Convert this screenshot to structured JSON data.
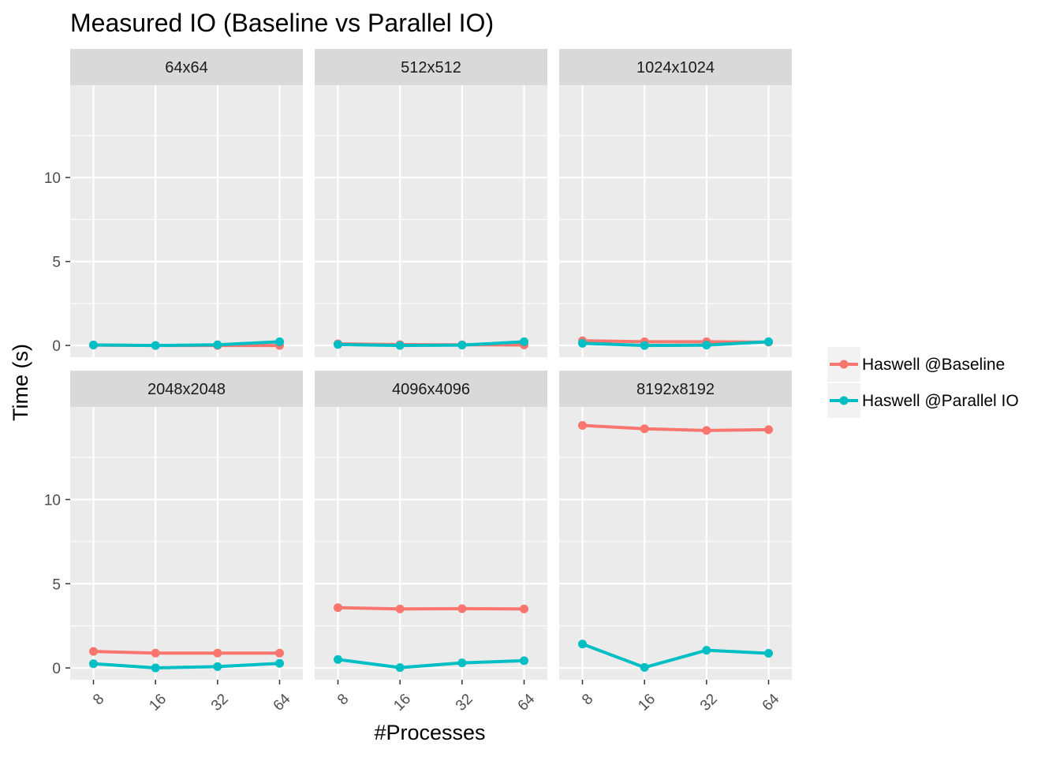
{
  "chart_data": {
    "type": "line",
    "title": "Measured IO (Baseline vs Parallel IO)",
    "xlabel": "#Processes",
    "ylabel": "Time (s)",
    "x": [
      "8",
      "16",
      "32",
      "64"
    ],
    "yticks": [
      "0",
      "5",
      "10"
    ],
    "ylim": [
      -0.7,
      15.5
    ],
    "grid": true,
    "legend_position": "right",
    "colors": {
      "Haswell @Baseline": "#F8766D",
      "Haswell @Parallel IO": "#00BFC4"
    },
    "legend": [
      "Haswell @Baseline",
      "Haswell @Parallel IO"
    ],
    "panels": [
      {
        "label": "64x64",
        "series": [
          {
            "name": "Haswell @Baseline",
            "values": [
              0.02,
              0.0,
              0.0,
              0.0
            ]
          },
          {
            "name": "Haswell @Parallel IO",
            "values": [
              0.03,
              0.0,
              0.04,
              0.22
            ]
          }
        ]
      },
      {
        "label": "512x512",
        "series": [
          {
            "name": "Haswell @Baseline",
            "values": [
              0.1,
              0.05,
              0.04,
              0.03
            ]
          },
          {
            "name": "Haswell @Parallel IO",
            "values": [
              0.06,
              0.0,
              0.02,
              0.22
            ]
          }
        ]
      },
      {
        "label": "1024x1024",
        "series": [
          {
            "name": "Haswell @Baseline",
            "values": [
              0.28,
              0.22,
              0.22,
              0.2
            ]
          },
          {
            "name": "Haswell @Parallel IO",
            "values": [
              0.13,
              0.0,
              0.02,
              0.22
            ]
          }
        ]
      },
      {
        "label": "2048x2048",
        "series": [
          {
            "name": "Haswell @Baseline",
            "values": [
              0.98,
              0.88,
              0.88,
              0.88
            ]
          },
          {
            "name": "Haswell @Parallel IO",
            "values": [
              0.25,
              0.0,
              0.08,
              0.27
            ]
          }
        ]
      },
      {
        "label": "4096x4096",
        "series": [
          {
            "name": "Haswell @Baseline",
            "values": [
              3.58,
              3.5,
              3.52,
              3.5
            ]
          },
          {
            "name": "Haswell @Parallel IO",
            "values": [
              0.5,
              0.02,
              0.3,
              0.43
            ]
          }
        ]
      },
      {
        "label": "8192x8192",
        "series": [
          {
            "name": "Haswell @Baseline",
            "values": [
              14.4,
              14.2,
              14.1,
              14.15
            ]
          },
          {
            "name": "Haswell @Parallel IO",
            "values": [
              1.42,
              0.03,
              1.05,
              0.87
            ]
          }
        ]
      }
    ]
  }
}
